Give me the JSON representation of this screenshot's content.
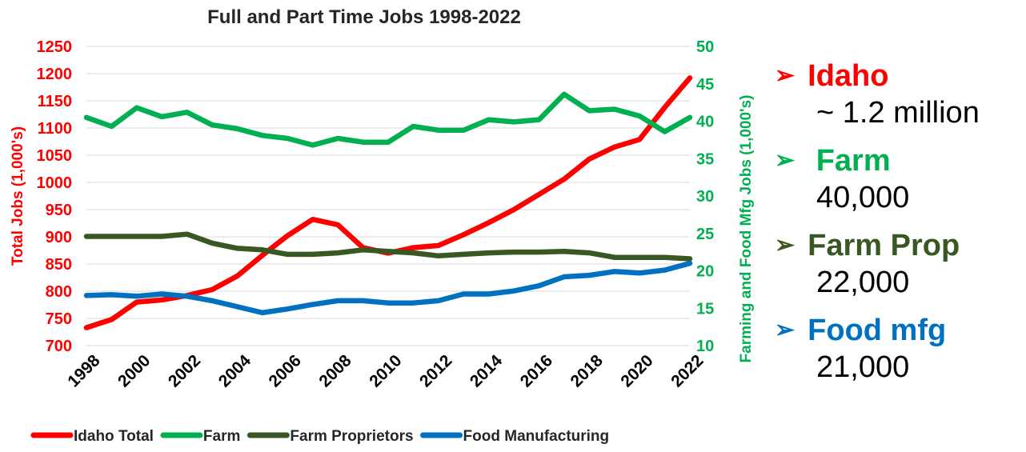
{
  "chart_data": {
    "type": "line",
    "title": "Full and Part Time Jobs 1998-2022",
    "x": [
      1998,
      1999,
      2000,
      2001,
      2002,
      2003,
      2004,
      2005,
      2006,
      2007,
      2008,
      2009,
      2010,
      2011,
      2012,
      2013,
      2014,
      2015,
      2016,
      2017,
      2018,
      2019,
      2020,
      2021,
      2022
    ],
    "x_ticks": [
      "1998",
      "2000",
      "2002",
      "2004",
      "2006",
      "2008",
      "2010",
      "2012",
      "2014",
      "2016",
      "2018",
      "2020",
      "2022"
    ],
    "ylabel_left": "Total Jobs (1,000's)",
    "ylabel_right": "Farming and Food Mfg Jobs (1,000's)",
    "ylim_left": [
      700,
      1250
    ],
    "ylim_right": [
      10,
      50
    ],
    "yticks_left": [
      "1250",
      "1200",
      "1150",
      "1100",
      "1050",
      "1000",
      "950",
      "900",
      "850",
      "800",
      "750",
      "700"
    ],
    "yticks_right": [
      "50",
      "45",
      "40",
      "35",
      "30",
      "25",
      "20",
      "15",
      "10"
    ],
    "grid": true,
    "legend_position": "bottom",
    "series": [
      {
        "name": "Idaho Total",
        "axis": "left",
        "color": "#ff0000",
        "values": [
          733,
          748,
          780,
          784,
          792,
          803,
          828,
          866,
          902,
          932,
          922,
          880,
          870,
          880,
          884,
          904,
          926,
          950,
          978,
          1006,
          1043,
          1065,
          1079,
          1138,
          1192
        ]
      },
      {
        "name": "Farm",
        "axis": "right",
        "color": "#00b050",
        "values": [
          40.5,
          39.3,
          41.8,
          40.6,
          41.2,
          39.5,
          39.0,
          38.1,
          37.7,
          36.8,
          37.7,
          37.2,
          37.2,
          39.3,
          38.8,
          38.8,
          40.2,
          39.9,
          40.2,
          43.6,
          41.4,
          41.6,
          40.7,
          38.6,
          40.5
        ]
      },
      {
        "name": "Farm Proprietors",
        "axis": "right",
        "color": "#385723",
        "values": [
          24.6,
          24.6,
          24.6,
          24.6,
          24.9,
          23.7,
          23.0,
          22.8,
          22.2,
          22.2,
          22.4,
          22.8,
          22.6,
          22.4,
          22.0,
          22.2,
          22.4,
          22.5,
          22.5,
          22.6,
          22.4,
          21.8,
          21.8,
          21.8,
          21.6
        ]
      },
      {
        "name": "Food Manufacturing",
        "axis": "right",
        "color": "#0070c0",
        "values": [
          16.7,
          16.8,
          16.6,
          16.9,
          16.6,
          16.0,
          15.2,
          14.4,
          14.9,
          15.5,
          16.0,
          16.0,
          15.7,
          15.7,
          16.0,
          16.9,
          16.9,
          17.3,
          18.0,
          19.2,
          19.4,
          19.9,
          19.7,
          20.1,
          21.0
        ]
      }
    ]
  },
  "bullets": [
    {
      "label": "Idaho",
      "value": "~ 1.2 million",
      "color": "#ff0000"
    },
    {
      "label": " Farm",
      "value": "40,000",
      "color": "#00b050"
    },
    {
      "label": "Farm Prop",
      "value": "22,000",
      "color": "#385723"
    },
    {
      "label": "Food mfg",
      "value": "21,000",
      "color": "#0070c0"
    }
  ],
  "arrow_icon": "➢"
}
